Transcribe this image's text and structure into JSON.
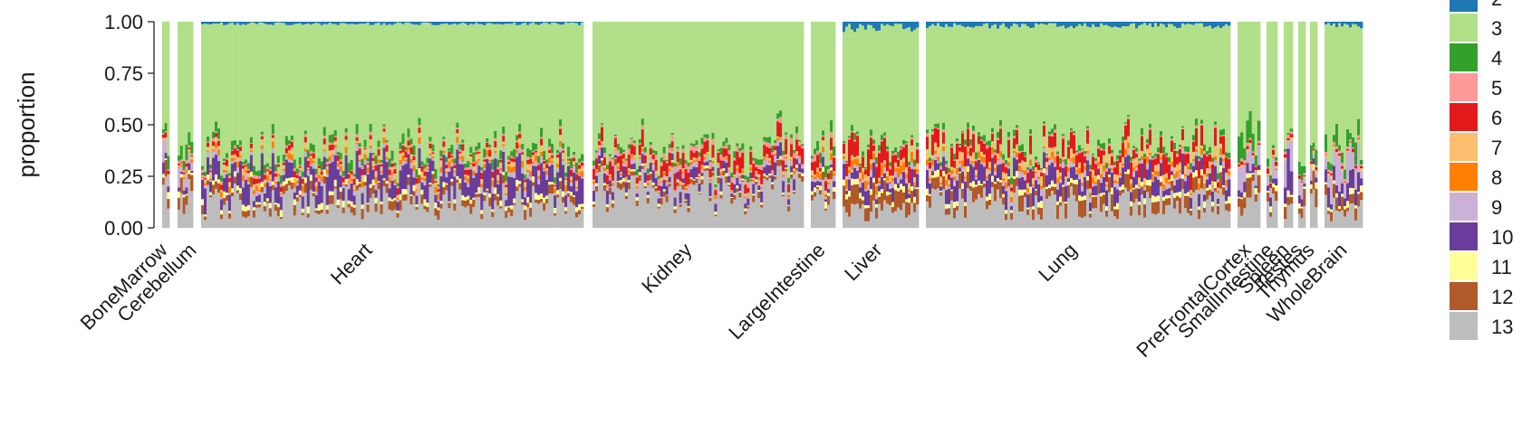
{
  "chart_data": {
    "type": "bar",
    "subtype": "stacked-proportion",
    "ylabel": "proportion",
    "ylim": [
      0,
      1
    ],
    "yticks": [
      "0.00",
      "0.25",
      "0.50",
      "0.75",
      "1.00"
    ],
    "categories": [
      "BoneMarrow",
      "Cerebellum",
      "Heart",
      "Kidney",
      "LargeIntestine",
      "Liver",
      "Lung",
      "PreFrontalCortex",
      "SmallIntestine",
      "Spleen",
      "Testes",
      "Thymus",
      "WholeBrain"
    ],
    "legend": {
      "placement": "right",
      "entries": [
        "2",
        "3",
        "4",
        "5",
        "6",
        "7",
        "8",
        "9",
        "10",
        "11",
        "12",
        "13"
      ]
    },
    "series": [
      {
        "name": "2",
        "color": "#1F78B4",
        "values": [
          0.0,
          0.0,
          0.01,
          0.0,
          0.0,
          0.03,
          0.02,
          0.0,
          0.0,
          0.0,
          0.0,
          0.0,
          0.02
        ]
      },
      {
        "name": "3",
        "color": "#B2DF8A",
        "values": [
          0.58,
          0.6,
          0.6,
          0.62,
          0.59,
          0.58,
          0.57,
          0.56,
          0.58,
          0.6,
          0.6,
          0.62,
          0.56
        ]
      },
      {
        "name": "4",
        "color": "#33A02C",
        "values": [
          0.04,
          0.05,
          0.03,
          0.02,
          0.04,
          0.02,
          0.02,
          0.08,
          0.04,
          0.02,
          0.05,
          0.05,
          0.07
        ]
      },
      {
        "name": "5",
        "color": "#FB9A99",
        "values": [
          0.01,
          0.01,
          0.01,
          0.02,
          0.02,
          0.01,
          0.01,
          0.01,
          0.01,
          0.01,
          0.01,
          0.01,
          0.01
        ]
      },
      {
        "name": "6",
        "color": "#E31A1C",
        "values": [
          0.02,
          0.01,
          0.02,
          0.05,
          0.04,
          0.08,
          0.06,
          0.01,
          0.02,
          0.01,
          0.01,
          0.01,
          0.01
        ]
      },
      {
        "name": "7",
        "color": "#FDBF6F",
        "values": [
          0.01,
          0.01,
          0.02,
          0.01,
          0.02,
          0.02,
          0.03,
          0.01,
          0.01,
          0.01,
          0.01,
          0.01,
          0.01
        ]
      },
      {
        "name": "8",
        "color": "#FF7F00",
        "values": [
          0.0,
          0.01,
          0.02,
          0.01,
          0.02,
          0.03,
          0.02,
          0.0,
          0.01,
          0.0,
          0.0,
          0.0,
          0.0
        ]
      },
      {
        "name": "9",
        "color": "#CAB2D6",
        "values": [
          0.07,
          0.06,
          0.02,
          0.02,
          0.02,
          0.02,
          0.02,
          0.08,
          0.06,
          0.1,
          0.05,
          0.05,
          0.1
        ]
      },
      {
        "name": "10",
        "color": "#6A3D9A",
        "values": [
          0.05,
          0.03,
          0.09,
          0.04,
          0.03,
          0.05,
          0.06,
          0.03,
          0.03,
          0.12,
          0.05,
          0.04,
          0.06
        ]
      },
      {
        "name": "11",
        "color": "#FFFF99",
        "values": [
          0.02,
          0.02,
          0.02,
          0.01,
          0.02,
          0.02,
          0.02,
          0.02,
          0.02,
          0.02,
          0.02,
          0.02,
          0.02
        ]
      },
      {
        "name": "12",
        "color": "#B15928",
        "values": [
          0.05,
          0.06,
          0.03,
          0.02,
          0.03,
          0.06,
          0.05,
          0.06,
          0.04,
          0.04,
          0.06,
          0.06,
          0.04
        ]
      },
      {
        "name": "13",
        "color": "#BDBDBD",
        "values": [
          0.15,
          0.14,
          0.13,
          0.18,
          0.17,
          0.08,
          0.12,
          0.14,
          0.18,
          0.07,
          0.14,
          0.13,
          0.1
        ]
      }
    ],
    "grid": false
  }
}
